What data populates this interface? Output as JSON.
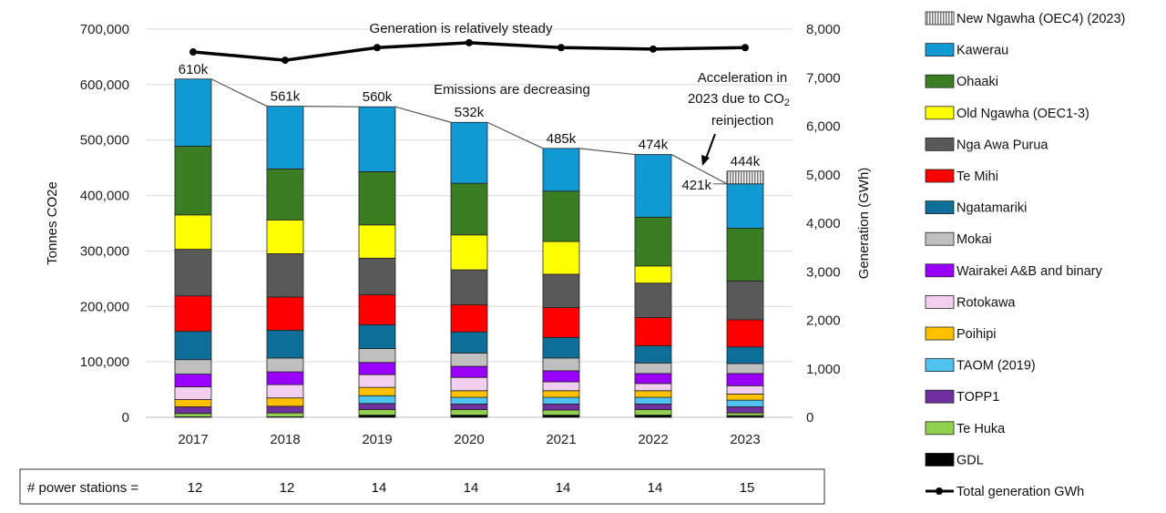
{
  "chart_data": {
    "type": "bar",
    "subtype": "stacked-bar-with-line",
    "categories": [
      "2017",
      "2018",
      "2019",
      "2020",
      "2021",
      "2022",
      "2023"
    ],
    "ylabel": "Tonnes CO2e",
    "y2label": "Generation (GWh)",
    "ylim": [
      0,
      700000
    ],
    "y2lim": [
      0,
      8000
    ],
    "yticks": [
      "0",
      "100,000",
      "200,000",
      "300,000",
      "400,000",
      "500,000",
      "600,000",
      "700,000"
    ],
    "y2ticks": [
      "0",
      "1,000",
      "2,000",
      "3,000",
      "4,000",
      "5,000",
      "6,000",
      "7,000",
      "8,000"
    ],
    "grid": true,
    "legend_position": "right",
    "series": [
      {
        "name": "GDL",
        "color": "#000000",
        "values": [
          1000,
          1000,
          4000,
          4000,
          4000,
          4000,
          3000
        ]
      },
      {
        "name": "Te Huka",
        "color": "#92D050",
        "values": [
          6000,
          7000,
          10000,
          10000,
          9000,
          10000,
          5000
        ]
      },
      {
        "name": "TOPP1",
        "color": "#7030A0",
        "values": [
          12000,
          12000,
          11000,
          10000,
          11000,
          10000,
          11000
        ]
      },
      {
        "name": "TAOM (2019)",
        "color": "#4EC3F0",
        "values": [
          0,
          0,
          14000,
          12000,
          12000,
          12000,
          12000
        ]
      },
      {
        "name": "Poihipi",
        "color": "#FFC000",
        "values": [
          13000,
          15000,
          15000,
          12000,
          12000,
          12000,
          11000
        ]
      },
      {
        "name": "Rotokawa",
        "color": "#F2CEEF",
        "values": [
          23000,
          24000,
          23000,
          24000,
          16000,
          13000,
          15000
        ]
      },
      {
        "name": "Wairakei A&B and binary",
        "color": "#9900FF",
        "values": [
          23000,
          23000,
          22000,
          20000,
          20000,
          18000,
          22000
        ]
      },
      {
        "name": "Mokai",
        "color": "#BFBFBF",
        "values": [
          26000,
          25000,
          25000,
          24000,
          23000,
          19000,
          18000
        ]
      },
      {
        "name": "Ngatamariki",
        "color": "#0E6E9A",
        "values": [
          51000,
          50000,
          43000,
          38000,
          37000,
          31000,
          30000
        ]
      },
      {
        "name": "Te Mihi",
        "color": "#FF0000",
        "values": [
          64000,
          60000,
          54000,
          49000,
          54000,
          51000,
          49000
        ]
      },
      {
        "name": "Nga Awa Purua",
        "color": "#595959",
        "values": [
          84000,
          78000,
          66000,
          63000,
          60000,
          62000,
          70000
        ]
      },
      {
        "name": "Old Ngawha (OEC1-3)",
        "color": "#FFFF00",
        "values": [
          62000,
          61000,
          60000,
          63000,
          59000,
          31000,
          0
        ]
      },
      {
        "name": "Ohaaki",
        "color": "#3A7D22",
        "values": [
          124000,
          92000,
          96000,
          93000,
          91000,
          88000,
          95000
        ]
      },
      {
        "name": "Kawerau",
        "color": "#1199D4",
        "values": [
          121000,
          113000,
          117000,
          110000,
          77000,
          113000,
          80000
        ]
      },
      {
        "name": "New Ngawha (OEC4) (2023)",
        "color": "hatched",
        "values": [
          0,
          0,
          0,
          0,
          0,
          0,
          23000
        ]
      }
    ],
    "line_series": {
      "name": "Total generation GWh",
      "color": "#000000",
      "axis": "right",
      "values": [
        7530,
        7360,
        7620,
        7720,
        7620,
        7590,
        7620
      ]
    },
    "total_labels": [
      "610k",
      "561k",
      "560k",
      "532k",
      "485k",
      "474k",
      "444k"
    ],
    "extra_label_2023": "421k",
    "annotations": {
      "generation": "Generation is relatively steady",
      "emissions": "Emissions are decreasing",
      "accel_1": "Acceleration in",
      "accel_2": "2023 due to CO",
      "accel_2_sub": "2",
      "accel_3": "reinjection"
    },
    "power_stations": {
      "label": "# power stations =",
      "values": [
        "12",
        "12",
        "14",
        "14",
        "14",
        "14",
        "15"
      ]
    }
  }
}
